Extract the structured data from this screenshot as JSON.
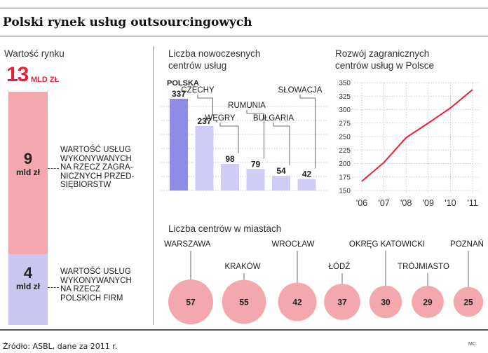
{
  "title": "Polski rynek usług outsourcingowych",
  "market": {
    "heading": "Wartość rynku",
    "total_value": "13",
    "total_unit": "MLD ZŁ",
    "segments": [
      {
        "value": "9",
        "unit": "mld zł",
        "color": "#f2a8ad",
        "label": "WARTOŚĆ USŁUG WYKONYWANYCH NA RZECZ ZAGRA-NICZNYCH PRZED-SIĘBIORSTW"
      },
      {
        "value": "4",
        "unit": "mld zł",
        "color": "#c9c7ef",
        "label": "WARTOŚĆ USŁUG WYKONYWANYCH NA RZECZ POLSKICH FIRM"
      }
    ]
  },
  "chart_data": [
    {
      "type": "bar",
      "title": "Liczba nowoczesnych centrów usług",
      "categories": [
        "POLSKA",
        "CZECHY",
        "WĘGRY",
        "RUMUNIA",
        "BUŁGARIA",
        "SŁOWACJA"
      ],
      "values": [
        337,
        237,
        98,
        79,
        54,
        42
      ],
      "colors": {
        "highlight": "#8f8ce6",
        "base": "#cfcdf5"
      }
    },
    {
      "type": "line",
      "title": "Rozwój zagranicznych centrów usług w Polsce",
      "x": [
        "'06",
        "'07",
        "'08",
        "'09",
        "'10",
        "'11"
      ],
      "y": [
        167,
        202,
        248,
        275,
        303,
        337
      ],
      "ylim": [
        150,
        350
      ],
      "yticks": [
        150,
        175,
        200,
        225,
        250,
        275,
        300,
        325,
        350
      ],
      "grid": true,
      "color": "#e8213a"
    },
    {
      "type": "bubble",
      "title": "Liczba centrów w miastach",
      "categories": [
        "WARSZAWA",
        "KRAKÓW",
        "WROCŁAW",
        "ŁÓDŹ",
        "OKRĘG KATOWICKI",
        "TRÓJMIASTO",
        "POZNAŃ"
      ],
      "values": [
        57,
        55,
        42,
        37,
        30,
        29,
        25
      ],
      "color": "#f2a8ad"
    }
  ],
  "source": "Źródło: ASBL, dane za 2011 r.",
  "credit": "MC"
}
